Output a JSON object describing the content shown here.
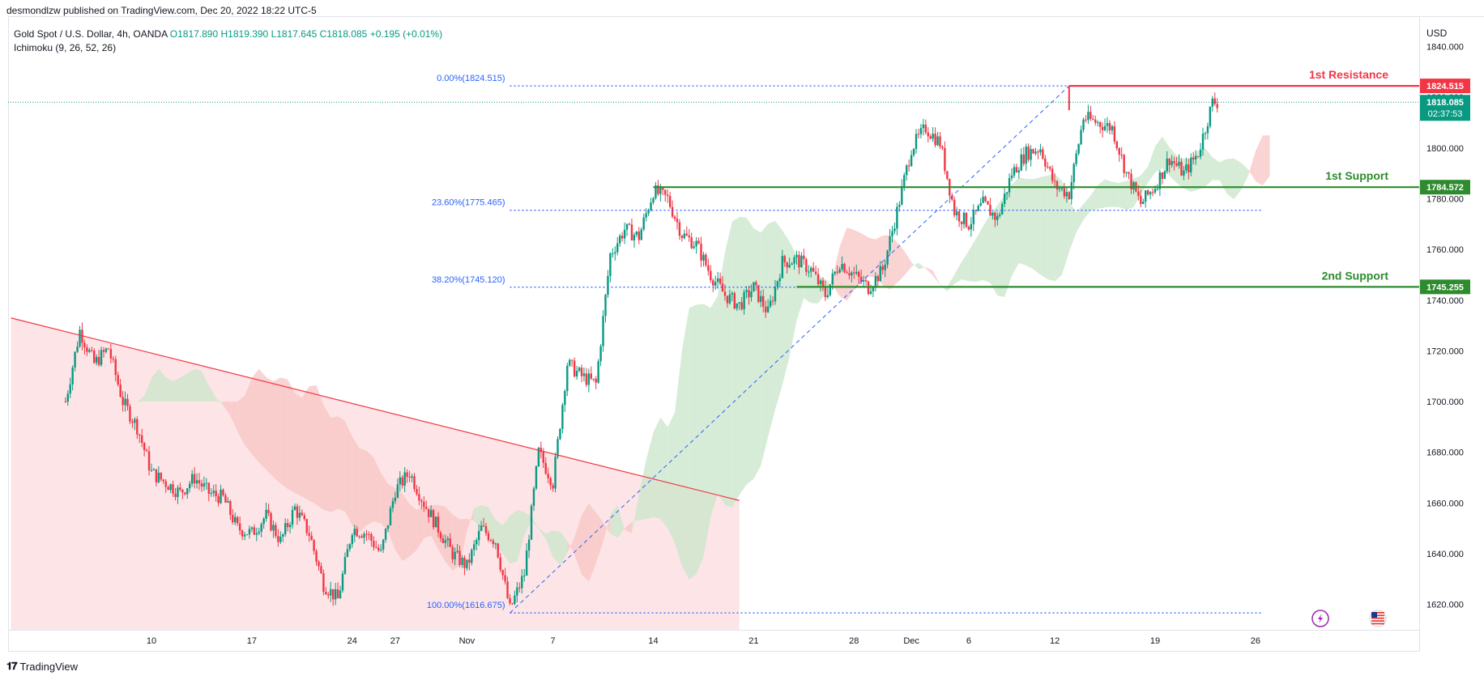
{
  "header": {
    "published": "desmondlzw published on TradingView.com, Dec 20, 2022 18:22 UTC-5",
    "symbol": "Gold Spot / U.S. Dollar, 4h, OANDA",
    "open": "O1817.890",
    "high": "H1819.390",
    "low": "L1817.645",
    "close": "C1818.085",
    "change": "+0.195 (+0.01%)",
    "indicator": "Ichimoku (9, 26, 52, 26)",
    "currency": "USD"
  },
  "footer": {
    "brand": "TradingView",
    "logo": "tradingview-logo-icon"
  },
  "colors": {
    "up": "#089981",
    "down": "#f23645",
    "support": "#2e8b2e",
    "resistance": "#f23645",
    "fib": "#2962ff",
    "cloud_green": "#c8e6c9",
    "cloud_red": "#f8c4c4",
    "downtrend_zone": "#fde2e4"
  },
  "chart_data": {
    "type": "candlestick",
    "y_range": [
      1610,
      1852
    ],
    "y_ticks": [
      1620,
      1640,
      1660,
      1680,
      1700,
      1720,
      1740,
      1760,
      1780,
      1800,
      1820,
      1840
    ],
    "y_tick_labels": [
      "1620.000",
      "1640.000",
      "1660.000",
      "1680.000",
      "1700.000",
      "1720.000",
      "1740.000",
      "1760.000",
      "1780.000",
      "1800.000",
      "1820.000",
      "1840.000"
    ],
    "x_ticks": [
      {
        "label": "10",
        "day": 10
      },
      {
        "label": "17",
        "day": 17
      },
      {
        "label": "24",
        "day": 24
      },
      {
        "label": "27",
        "day": 27
      },
      {
        "label": "Nov",
        "day": 32
      },
      {
        "label": "7",
        "day": 38
      },
      {
        "label": "14",
        "day": 45
      },
      {
        "label": "21",
        "day": 52
      },
      {
        "label": "28",
        "day": 59
      },
      {
        "label": "Dec",
        "day": 63
      },
      {
        "label": "6",
        "day": 67
      },
      {
        "label": "12",
        "day": 73
      },
      {
        "label": "19",
        "day": 80
      },
      {
        "label": "26",
        "day": 87
      }
    ],
    "price_path": [
      [
        4,
        1700
      ],
      [
        5,
        1728
      ],
      [
        6,
        1715
      ],
      [
        7,
        1721
      ],
      [
        8,
        1700
      ],
      [
        9,
        1690
      ],
      [
        10,
        1672
      ],
      [
        11,
        1668
      ],
      [
        12,
        1664
      ],
      [
        13,
        1670
      ],
      [
        14,
        1664
      ],
      [
        15,
        1662
      ],
      [
        16,
        1650
      ],
      [
        17,
        1648
      ],
      [
        18,
        1655
      ],
      [
        19,
        1645
      ],
      [
        20,
        1658
      ],
      [
        21,
        1648
      ],
      [
        22,
        1628
      ],
      [
        23,
        1622
      ],
      [
        24,
        1650
      ],
      [
        25,
        1648
      ],
      [
        26,
        1640
      ],
      [
        27,
        1665
      ],
      [
        28,
        1672
      ],
      [
        29,
        1660
      ],
      [
        30,
        1650
      ],
      [
        31,
        1640
      ],
      [
        32,
        1635
      ],
      [
        33,
        1650
      ],
      [
        34,
        1645
      ],
      [
        35,
        1618
      ],
      [
        36,
        1632
      ],
      [
        37,
        1680
      ],
      [
        38,
        1668
      ],
      [
        39,
        1715
      ],
      [
        40,
        1710
      ],
      [
        41,
        1707
      ],
      [
        42,
        1758
      ],
      [
        43,
        1768
      ],
      [
        44,
        1765
      ],
      [
        45,
        1783
      ],
      [
        46,
        1780
      ],
      [
        47,
        1766
      ],
      [
        48,
        1762
      ],
      [
        49,
        1750
      ],
      [
        50,
        1742
      ],
      [
        51,
        1738
      ],
      [
        52,
        1745
      ],
      [
        53,
        1735
      ],
      [
        54,
        1755
      ],
      [
        55,
        1756
      ],
      [
        56,
        1752
      ],
      [
        57,
        1742
      ],
      [
        58,
        1755
      ],
      [
        59,
        1750
      ],
      [
        60,
        1745
      ],
      [
        61,
        1752
      ],
      [
        62,
        1775
      ],
      [
        63,
        1800
      ],
      [
        64,
        1808
      ],
      [
        65,
        1802
      ],
      [
        66,
        1775
      ],
      [
        67,
        1770
      ],
      [
        68,
        1778
      ],
      [
        69,
        1772
      ],
      [
        70,
        1790
      ],
      [
        71,
        1798
      ],
      [
        72,
        1800
      ],
      [
        73,
        1785
      ],
      [
        74,
        1782
      ],
      [
        75,
        1812
      ],
      [
        76,
        1810
      ],
      [
        77,
        1808
      ],
      [
        78,
        1790
      ],
      [
        79,
        1778
      ],
      [
        80,
        1785
      ],
      [
        81,
        1796
      ],
      [
        82,
        1790
      ],
      [
        83,
        1798
      ],
      [
        84,
        1818
      ]
    ],
    "levels": [
      {
        "name": "1st Resistance",
        "value": 1824.515,
        "value_label": "1824.515",
        "kind": "resistance",
        "start_day": 74
      },
      {
        "name": "1st Support",
        "value": 1784.572,
        "value_label": "1784.572",
        "kind": "support",
        "start_day": 45
      },
      {
        "name": "2nd Support",
        "value": 1745.255,
        "value_label": "1745.255",
        "kind": "support",
        "start_day": 55
      }
    ],
    "fibonacci": [
      {
        "label": "0.00%(1824.515)",
        "value": 1824.515
      },
      {
        "label": "23.60%(1775.465)",
        "value": 1775.465
      },
      {
        "label": "38.20%(1745.120)",
        "value": 1745.12
      },
      {
        "label": "100.00%(1616.675)",
        "value": 1616.675
      }
    ],
    "fib_start_day": 35,
    "fib_end_day": 87.5,
    "fib_trend": {
      "from": [
        35,
        1616.675
      ],
      "to": [
        74,
        1824.515
      ]
    },
    "downtrend_line": {
      "from": [
        0.2,
        1733
      ],
      "to": [
        51,
        1661
      ]
    },
    "downtrend_zone_end_day": 51,
    "last_price": {
      "value": 1818.085,
      "label": "1818.085",
      "countdown": "02:37:53"
    },
    "icons": [
      "lightning-event-icon",
      "us-flag-icon"
    ]
  }
}
